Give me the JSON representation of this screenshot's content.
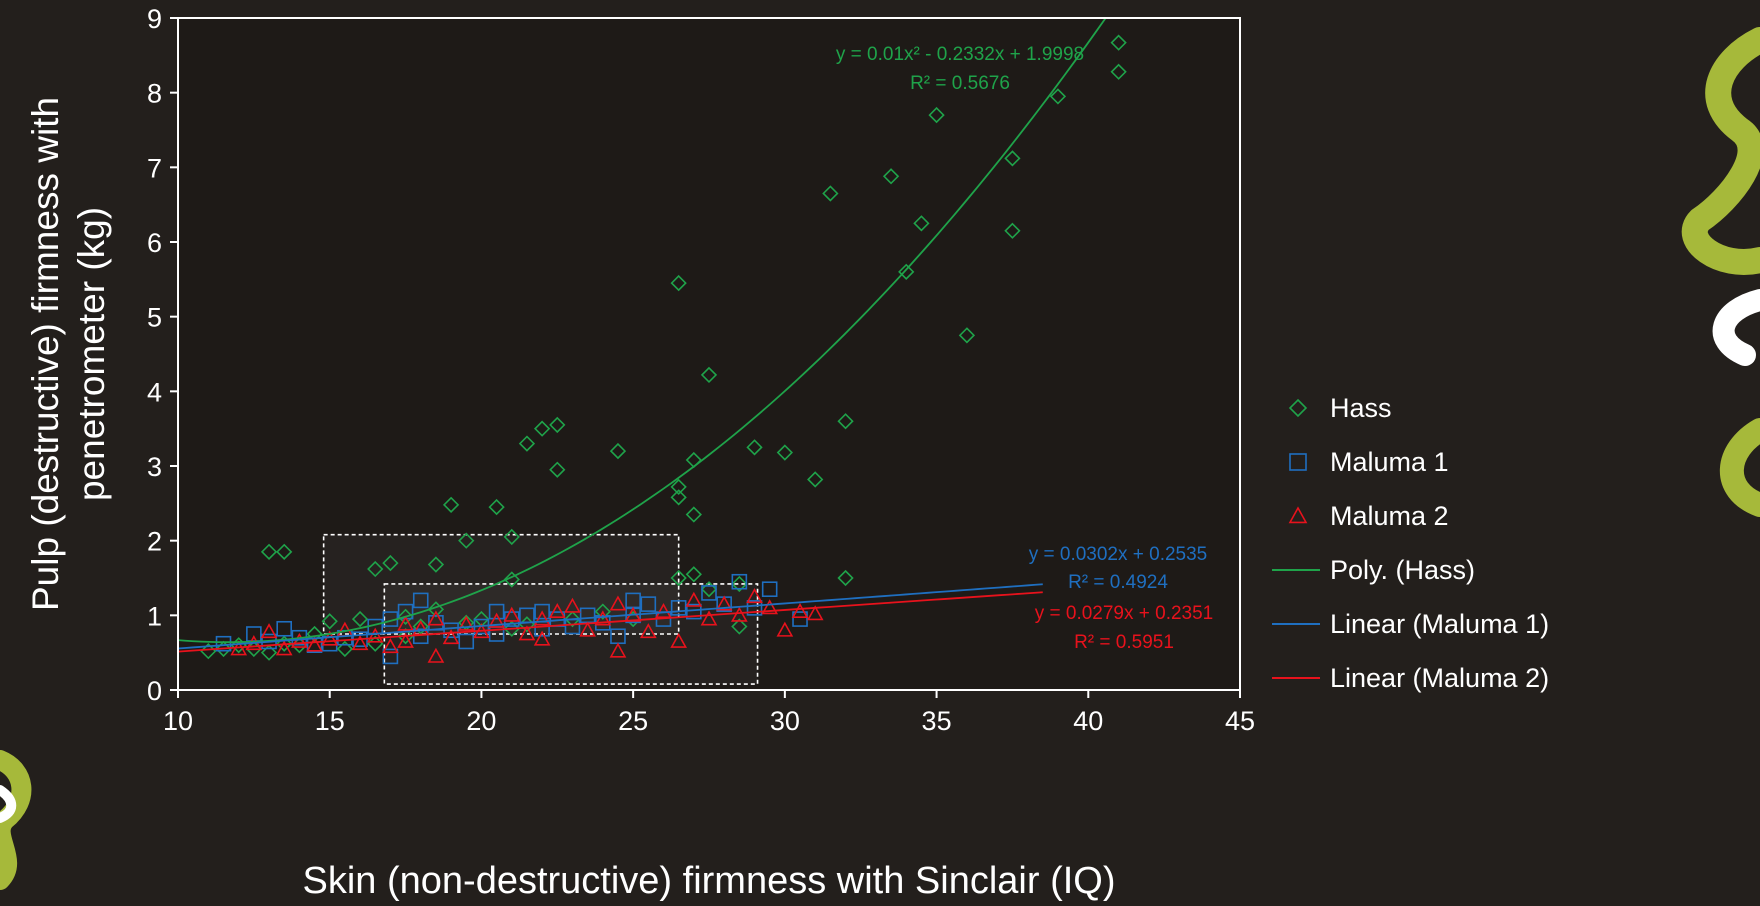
{
  "chart_data": {
    "type": "scatter",
    "xlabel": "Skin (non-destructive) firmness with Sinclair (IQ)",
    "ylabel_lines": [
      "Pulp (destructive) firmness with",
      "penetrometer (kg)"
    ],
    "xlim": [
      10,
      45
    ],
    "ylim": [
      0,
      9
    ],
    "x_ticks": [
      10,
      15,
      20,
      25,
      30,
      35,
      40,
      45
    ],
    "y_ticks": [
      0,
      1,
      2,
      3,
      4,
      5,
      6,
      7,
      8,
      9
    ],
    "grid": false,
    "legend_position": "right",
    "colors": {
      "background": "#231f1c",
      "axis": "#ffffff",
      "text": "#ffffff",
      "hass": "#1fa34a",
      "maluma1": "#1f6fc0",
      "maluma2": "#e8121c",
      "box": "#ffffff",
      "decor": "#a6b93a"
    },
    "legend": [
      {
        "label": "Hass",
        "kind": "marker",
        "shape": "diamond",
        "color": "#1fa34a"
      },
      {
        "label": "Maluma 1",
        "kind": "marker",
        "shape": "square",
        "color": "#1f6fc0"
      },
      {
        "label": "Maluma 2",
        "kind": "marker",
        "shape": "triangle",
        "color": "#e8121c"
      },
      {
        "label": "Poly. (Hass)",
        "kind": "line",
        "color": "#1fa34a"
      },
      {
        "label": "Linear (Maluma 1)",
        "kind": "line",
        "color": "#1f6fc0"
      },
      {
        "label": "Linear (Maluma 2)",
        "kind": "line",
        "color": "#e8121c"
      }
    ],
    "series": [
      {
        "name": "Hass",
        "shape": "diamond",
        "color": "#1fa34a",
        "points": [
          [
            11,
            0.52
          ],
          [
            11.5,
            0.55
          ],
          [
            12,
            0.6
          ],
          [
            12.5,
            0.55
          ],
          [
            13,
            0.5
          ],
          [
            13,
            1.85
          ],
          [
            13.5,
            1.85
          ],
          [
            13.5,
            0.62
          ],
          [
            14,
            0.6
          ],
          [
            14.5,
            0.75
          ],
          [
            15,
            0.92
          ],
          [
            15.5,
            0.55
          ],
          [
            16,
            0.95
          ],
          [
            16.5,
            1.62
          ],
          [
            16.5,
            0.62
          ],
          [
            17,
            1.7
          ],
          [
            17.5,
            0.72
          ],
          [
            17.5,
            0.98
          ],
          [
            18,
            0.85
          ],
          [
            18.5,
            1.68
          ],
          [
            18.5,
            1.08
          ],
          [
            19,
            2.48
          ],
          [
            19.5,
            2.0
          ],
          [
            19.5,
            0.9
          ],
          [
            20,
            0.95
          ],
          [
            20.5,
            2.45
          ],
          [
            21,
            2.05
          ],
          [
            21,
            1.48
          ],
          [
            21,
            0.82
          ],
          [
            21.5,
            3.3
          ],
          [
            21.5,
            0.88
          ],
          [
            22,
            3.5
          ],
          [
            22.5,
            3.55
          ],
          [
            22.5,
            2.95
          ],
          [
            23,
            0.95
          ],
          [
            24,
            1.05
          ],
          [
            24.5,
            3.2
          ],
          [
            25,
            0.95
          ],
          [
            26.5,
            5.45
          ],
          [
            26.5,
            2.72
          ],
          [
            26.5,
            2.58
          ],
          [
            26.5,
            1.5
          ],
          [
            27,
            3.08
          ],
          [
            27,
            2.35
          ],
          [
            27,
            1.55
          ],
          [
            27.5,
            4.22
          ],
          [
            27.5,
            1.35
          ],
          [
            28.5,
            1.42
          ],
          [
            28.5,
            0.85
          ],
          [
            29,
            3.25
          ],
          [
            30,
            3.18
          ],
          [
            31,
            2.82
          ],
          [
            31.5,
            6.65
          ],
          [
            32,
            3.6
          ],
          [
            32,
            1.5
          ],
          [
            33.5,
            6.88
          ],
          [
            34,
            5.6
          ],
          [
            34.5,
            6.25
          ],
          [
            35,
            7.7
          ],
          [
            36,
            4.75
          ],
          [
            37.5,
            7.12
          ],
          [
            37.5,
            6.15
          ],
          [
            39,
            7.95
          ],
          [
            41,
            8.67
          ],
          [
            41,
            8.28
          ]
        ]
      },
      {
        "name": "Maluma 1",
        "shape": "square",
        "color": "#1f6fc0",
        "points": [
          [
            11.5,
            0.62
          ],
          [
            12.5,
            0.75
          ],
          [
            13,
            0.65
          ],
          [
            13.5,
            0.82
          ],
          [
            14,
            0.7
          ],
          [
            14.5,
            0.6
          ],
          [
            15,
            0.62
          ],
          [
            15.5,
            0.7
          ],
          [
            16,
            0.68
          ],
          [
            16.5,
            0.85
          ],
          [
            17,
            0.45
          ],
          [
            17,
            0.95
          ],
          [
            17.5,
            1.05
          ],
          [
            18,
            0.72
          ],
          [
            18,
            1.2
          ],
          [
            18.5,
            0.9
          ],
          [
            19,
            0.8
          ],
          [
            19.5,
            0.65
          ],
          [
            20,
            0.85
          ],
          [
            20.5,
            1.05
          ],
          [
            20.5,
            0.75
          ],
          [
            21,
            0.95
          ],
          [
            21.5,
            1.0
          ],
          [
            22,
            0.82
          ],
          [
            22,
            1.05
          ],
          [
            22.5,
            0.95
          ],
          [
            23,
            0.85
          ],
          [
            23.5,
            1.0
          ],
          [
            24,
            0.9
          ],
          [
            24.5,
            0.72
          ],
          [
            25,
            1.2
          ],
          [
            25,
            1.0
          ],
          [
            25.5,
            1.15
          ],
          [
            26,
            0.95
          ],
          [
            26.5,
            1.1
          ],
          [
            27,
            1.05
          ],
          [
            27.5,
            1.3
          ],
          [
            28,
            1.15
          ],
          [
            28.5,
            1.45
          ],
          [
            29,
            1.1
          ],
          [
            29.5,
            1.35
          ],
          [
            30.5,
            0.95
          ]
        ]
      },
      {
        "name": "Maluma 2",
        "shape": "triangle",
        "color": "#e8121c",
        "points": [
          [
            12,
            0.55
          ],
          [
            12.5,
            0.62
          ],
          [
            13,
            0.78
          ],
          [
            13.5,
            0.55
          ],
          [
            14,
            0.65
          ],
          [
            14.5,
            0.6
          ],
          [
            15,
            0.68
          ],
          [
            15.5,
            0.8
          ],
          [
            16,
            0.62
          ],
          [
            16.5,
            0.72
          ],
          [
            17,
            0.58
          ],
          [
            17.5,
            0.65
          ],
          [
            17.5,
            0.88
          ],
          [
            18,
            0.82
          ],
          [
            18.5,
            0.45
          ],
          [
            18.5,
            0.95
          ],
          [
            19,
            0.7
          ],
          [
            19.5,
            0.88
          ],
          [
            20,
            0.78
          ],
          [
            20.5,
            0.92
          ],
          [
            21,
            1.0
          ],
          [
            21.5,
            0.75
          ],
          [
            22,
            0.68
          ],
          [
            22,
            0.95
          ],
          [
            22.5,
            1.05
          ],
          [
            23,
            1.12
          ],
          [
            23.5,
            0.8
          ],
          [
            24,
            0.95
          ],
          [
            24.5,
            0.52
          ],
          [
            24.5,
            1.15
          ],
          [
            25,
            1.0
          ],
          [
            25.5,
            0.78
          ],
          [
            26,
            1.05
          ],
          [
            26.5,
            0.65
          ],
          [
            27,
            1.2
          ],
          [
            27.5,
            0.95
          ],
          [
            28,
            1.15
          ],
          [
            28.5,
            1.0
          ],
          [
            29,
            1.25
          ],
          [
            29.5,
            1.1
          ],
          [
            30,
            0.8
          ],
          [
            30.5,
            1.05
          ],
          [
            31,
            1.02
          ]
        ]
      }
    ],
    "trendlines": [
      {
        "name": "Poly. (Hass)",
        "type": "poly2",
        "coef": [
          0.01,
          -0.2332,
          1.9998
        ],
        "x_range": [
          10,
          41
        ],
        "color": "#1fa34a",
        "equation": "y = 0.01x² - 0.2332x + 1.9998",
        "r2": "R² = 0.5676"
      },
      {
        "name": "Linear (Maluma 1)",
        "type": "linear",
        "coef": [
          0.0302,
          0.2535
        ],
        "x_range": [
          10,
          38.5
        ],
        "color": "#1f6fc0",
        "equation": "y = 0.0302x + 0.2535",
        "r2": "R² = 0.4924"
      },
      {
        "name": "Linear (Maluma 2)",
        "type": "linear",
        "coef": [
          0.0279,
          0.2351
        ],
        "x_range": [
          10,
          38.5
        ],
        "color": "#e8121c",
        "equation": "y = 0.0279x + 0.2351",
        "r2": "R² = 0.5951"
      }
    ],
    "highlight_boxes": [
      {
        "x0": 14.8,
        "x1": 26.5,
        "y0": 0.75,
        "y1": 2.08
      },
      {
        "x0": 16.8,
        "x1": 29.1,
        "y0": 0.08,
        "y1": 1.42
      }
    ]
  }
}
